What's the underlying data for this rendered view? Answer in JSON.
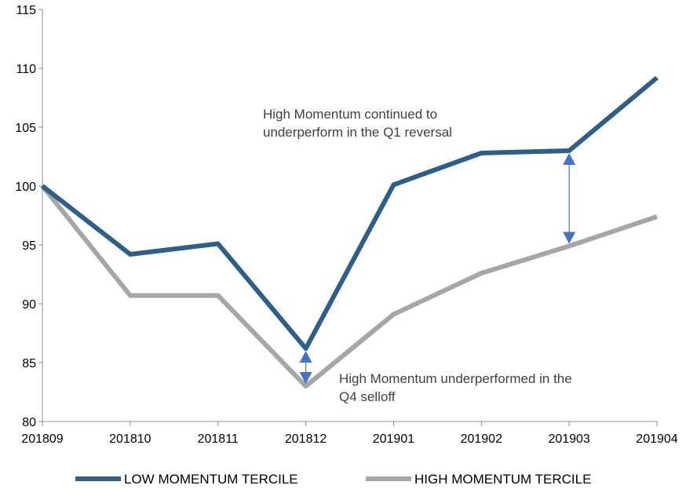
{
  "chart_data": {
    "type": "line",
    "categories": [
      "201809",
      "201810",
      "201811",
      "201812",
      "201901",
      "201902",
      "201903",
      "201904"
    ],
    "series": [
      {
        "name": "LOW MOMENTUM TERCILE",
        "color": "#2e5f8a",
        "values": [
          100,
          94.2,
          95.1,
          86.2,
          100.1,
          102.8,
          103.0,
          109.2
        ]
      },
      {
        "name": "HIGH MOMENTUM TERCILE",
        "color": "#a6a6a6",
        "values": [
          100,
          90.7,
          90.7,
          83.0,
          89.1,
          92.6,
          94.9,
          97.4
        ]
      }
    ],
    "ylim": [
      80,
      115
    ],
    "yticks": [
      80,
      85,
      90,
      95,
      100,
      105,
      110,
      115
    ],
    "annotations": [
      {
        "lines": [
          "High Momentum continued to",
          "underperform in the Q1 reversal"
        ],
        "category": "201903"
      },
      {
        "lines": [
          "High Momentum underperformed in the",
          "Q4 selloff"
        ],
        "category": "201812"
      }
    ],
    "arrow_color": "#4472c4",
    "legend_position": "bottom",
    "grid": false
  }
}
